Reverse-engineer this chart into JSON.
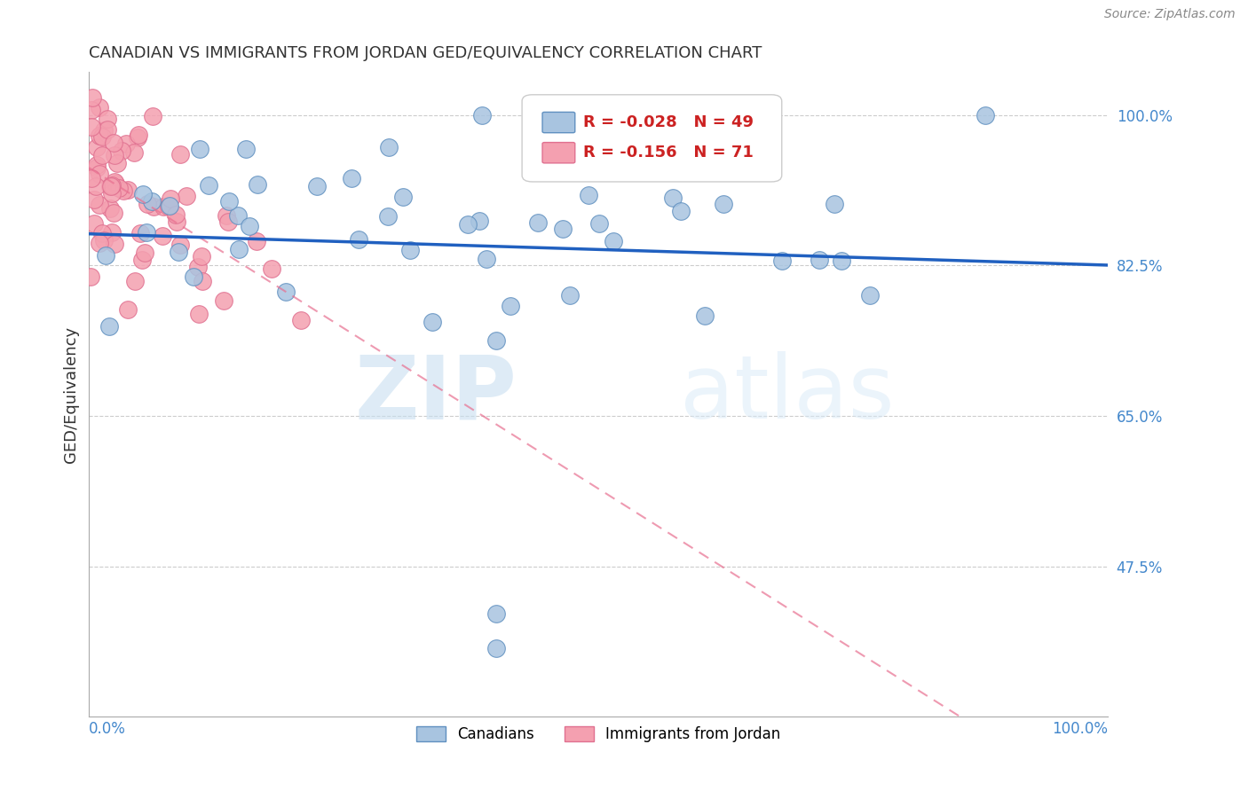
{
  "title": "CANADIAN VS IMMIGRANTS FROM JORDAN GED/EQUIVALENCY CORRELATION CHART",
  "source": "Source: ZipAtlas.com",
  "ylabel": "GED/Equivalency",
  "ytick_labels": [
    "100.0%",
    "82.5%",
    "65.0%",
    "47.5%"
  ],
  "ytick_values": [
    1.0,
    0.825,
    0.65,
    0.475
  ],
  "xlim": [
    0.0,
    1.0
  ],
  "ylim": [
    0.3,
    1.05
  ],
  "legend_r1": "R = -0.028",
  "legend_n1": "N = 49",
  "legend_r2": "R = -0.156",
  "legend_n2": "N = 71",
  "blue_color": "#a8c4e0",
  "pink_color": "#f4a0b0",
  "line_blue": "#2060c0",
  "line_pink": "#e87090",
  "background": "#ffffff",
  "watermark_zip": "ZIP",
  "watermark_atlas": "atlas"
}
